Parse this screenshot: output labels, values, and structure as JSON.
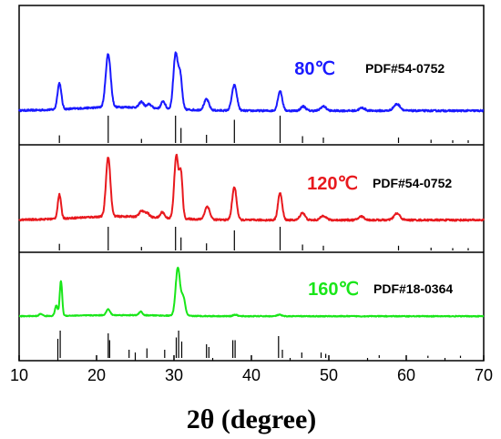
{
  "chart_data": {
    "type": "line",
    "xlabel": "2θ (degree)",
    "ylabel": "",
    "xlim": [
      10,
      70
    ],
    "x_ticks": [
      "10",
      "20",
      "30",
      "40",
      "50",
      "60",
      "70"
    ],
    "grid": false,
    "panels": [
      {
        "name": "80℃",
        "color": "#1a1aff",
        "reference": "PDF#54-0752",
        "baseline": 0.08,
        "noise": 0.012,
        "peaks": [
          {
            "x": 15.2,
            "h": 0.36,
            "w": 0.35
          },
          {
            "x": 21.5,
            "h": 0.73,
            "w": 0.45
          },
          {
            "x": 25.8,
            "h": 0.08,
            "w": 0.4
          },
          {
            "x": 26.8,
            "h": 0.05,
            "w": 0.4
          },
          {
            "x": 28.6,
            "h": 0.1,
            "w": 0.35
          },
          {
            "x": 30.2,
            "h": 0.75,
            "w": 0.4
          },
          {
            "x": 30.8,
            "h": 0.45,
            "w": 0.35
          },
          {
            "x": 34.2,
            "h": 0.15,
            "w": 0.45
          },
          {
            "x": 37.8,
            "h": 0.35,
            "w": 0.45
          },
          {
            "x": 43.7,
            "h": 0.27,
            "w": 0.4
          },
          {
            "x": 46.7,
            "h": 0.06,
            "w": 0.45
          },
          {
            "x": 49.3,
            "h": 0.06,
            "w": 0.5
          },
          {
            "x": 54.3,
            "h": 0.04,
            "w": 0.5
          },
          {
            "x": 58.8,
            "h": 0.09,
            "w": 0.6
          }
        ],
        "ref_lines": [
          {
            "x": 15.2,
            "h": 0.28
          },
          {
            "x": 21.5,
            "h": 1.0
          },
          {
            "x": 25.8,
            "h": 0.15
          },
          {
            "x": 30.2,
            "h": 1.0
          },
          {
            "x": 30.9,
            "h": 0.55
          },
          {
            "x": 34.2,
            "h": 0.3
          },
          {
            "x": 37.8,
            "h": 0.85
          },
          {
            "x": 43.7,
            "h": 1.0
          },
          {
            "x": 46.6,
            "h": 0.25
          },
          {
            "x": 49.3,
            "h": 0.2
          },
          {
            "x": 59.0,
            "h": 0.2
          },
          {
            "x": 63.2,
            "h": 0.12
          },
          {
            "x": 66.0,
            "h": 0.1
          },
          {
            "x": 68.0,
            "h": 0.1
          }
        ]
      },
      {
        "name": "120℃",
        "color": "#e8191e",
        "reference": "PDF#54-0752",
        "baseline": 0.08,
        "noise": 0.012,
        "peaks": [
          {
            "x": 15.2,
            "h": 0.33,
            "w": 0.3
          },
          {
            "x": 21.5,
            "h": 0.82,
            "w": 0.4
          },
          {
            "x": 25.8,
            "h": 0.08,
            "w": 0.4
          },
          {
            "x": 26.5,
            "h": 0.06,
            "w": 0.4
          },
          {
            "x": 28.5,
            "h": 0.08,
            "w": 0.35
          },
          {
            "x": 30.3,
            "h": 0.86,
            "w": 0.38
          },
          {
            "x": 30.9,
            "h": 0.6,
            "w": 0.3
          },
          {
            "x": 34.3,
            "h": 0.18,
            "w": 0.45
          },
          {
            "x": 37.8,
            "h": 0.45,
            "w": 0.4
          },
          {
            "x": 43.7,
            "h": 0.37,
            "w": 0.38
          },
          {
            "x": 46.6,
            "h": 0.1,
            "w": 0.45
          },
          {
            "x": 49.3,
            "h": 0.06,
            "w": 0.5
          },
          {
            "x": 54.2,
            "h": 0.05,
            "w": 0.5
          },
          {
            "x": 58.8,
            "h": 0.09,
            "w": 0.55
          }
        ],
        "ref_lines": [
          {
            "x": 15.2,
            "h": 0.28
          },
          {
            "x": 21.5,
            "h": 1.0
          },
          {
            "x": 25.8,
            "h": 0.15
          },
          {
            "x": 30.2,
            "h": 1.0
          },
          {
            "x": 30.9,
            "h": 0.55
          },
          {
            "x": 34.2,
            "h": 0.3
          },
          {
            "x": 37.8,
            "h": 0.85
          },
          {
            "x": 43.7,
            "h": 1.0
          },
          {
            "x": 46.6,
            "h": 0.25
          },
          {
            "x": 49.3,
            "h": 0.2
          },
          {
            "x": 59.0,
            "h": 0.2
          },
          {
            "x": 63.2,
            "h": 0.12
          },
          {
            "x": 66.0,
            "h": 0.1
          },
          {
            "x": 68.0,
            "h": 0.1
          }
        ]
      },
      {
        "name": "160℃",
        "color": "#19e619",
        "reference": "PDF#18-0364",
        "baseline": 0.06,
        "noise": 0.006,
        "peaks": [
          {
            "x": 12.8,
            "h": 0.03,
            "w": 0.3
          },
          {
            "x": 14.8,
            "h": 0.14,
            "w": 0.25
          },
          {
            "x": 15.4,
            "h": 0.48,
            "w": 0.22
          },
          {
            "x": 21.5,
            "h": 0.08,
            "w": 0.35
          },
          {
            "x": 25.7,
            "h": 0.05,
            "w": 0.3
          },
          {
            "x": 30.5,
            "h": 0.66,
            "w": 0.4
          },
          {
            "x": 31.2,
            "h": 0.25,
            "w": 0.35
          },
          {
            "x": 37.9,
            "h": 0.02,
            "w": 0.4
          },
          {
            "x": 43.6,
            "h": 0.02,
            "w": 0.4
          }
        ],
        "ref_lines": [
          {
            "x": 15.0,
            "h": 0.7
          },
          {
            "x": 15.3,
            "h": 1.0
          },
          {
            "x": 21.5,
            "h": 0.9
          },
          {
            "x": 21.7,
            "h": 0.65
          },
          {
            "x": 24.2,
            "h": 0.3
          },
          {
            "x": 25.0,
            "h": 0.2
          },
          {
            "x": 26.5,
            "h": 0.35
          },
          {
            "x": 28.8,
            "h": 0.3
          },
          {
            "x": 30.3,
            "h": 0.75
          },
          {
            "x": 30.6,
            "h": 1.0
          },
          {
            "x": 31.0,
            "h": 0.6
          },
          {
            "x": 34.2,
            "h": 0.5
          },
          {
            "x": 34.5,
            "h": 0.4
          },
          {
            "x": 37.6,
            "h": 0.65
          },
          {
            "x": 37.9,
            "h": 0.65
          },
          {
            "x": 43.5,
            "h": 0.8
          },
          {
            "x": 44.0,
            "h": 0.3
          },
          {
            "x": 46.5,
            "h": 0.2
          },
          {
            "x": 49.0,
            "h": 0.2
          },
          {
            "x": 49.6,
            "h": 0.15
          },
          {
            "x": 56.5,
            "h": 0.1
          },
          {
            "x": 62.8,
            "h": 0.08
          },
          {
            "x": 67.0,
            "h": 0.08
          }
        ]
      }
    ]
  }
}
